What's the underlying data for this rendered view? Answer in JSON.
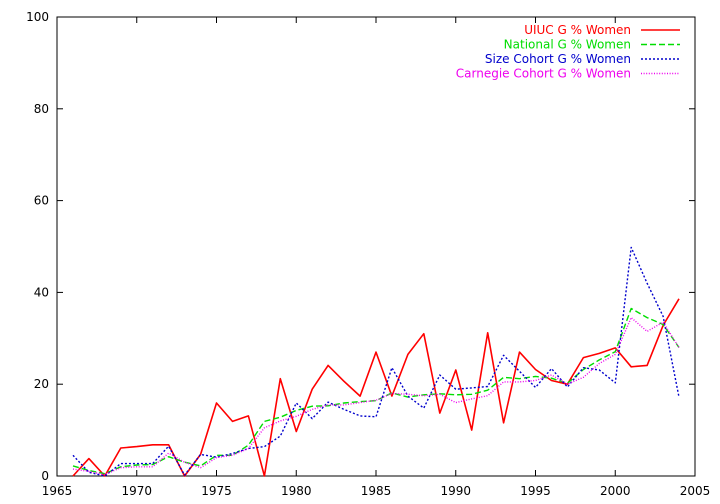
{
  "chart_data": {
    "type": "line",
    "title": "",
    "xlabel": "",
    "ylabel": "",
    "xlim": [
      1965,
      2005
    ],
    "ylim": [
      0,
      100
    ],
    "xticks": [
      1965,
      1970,
      1975,
      1980,
      1985,
      1990,
      1995,
      2000,
      2005
    ],
    "yticks": [
      0,
      20,
      40,
      60,
      80,
      100
    ],
    "grid": false,
    "legend_position": "top-right",
    "series": [
      {
        "name": "UIUC G % Women",
        "color": "#ff0000",
        "dash": "solid",
        "x": [
          1966,
          1967,
          1968,
          1969,
          1970,
          1971,
          1972,
          1973,
          1974,
          1975,
          1976,
          1977,
          1978,
          1979,
          1980,
          1981,
          1982,
          1983,
          1984,
          1985,
          1986,
          1987,
          1988,
          1989,
          1990,
          1991,
          1992,
          1993,
          1994,
          1995,
          1996,
          1997,
          1998,
          1999,
          2000,
          2001,
          2002,
          2003,
          2004
        ],
        "values": [
          0,
          3.8,
          0,
          6.1,
          6.4,
          6.8,
          6.8,
          0,
          4.7,
          15.9,
          11.9,
          13.1,
          0,
          21.2,
          9.7,
          18.9,
          24.1,
          20.6,
          17.4,
          27.0,
          17.4,
          26.5,
          31.0,
          13.7,
          23.1,
          10.0,
          31.2,
          11.6,
          27.0,
          23.2,
          20.8,
          20.0,
          25.8,
          26.7,
          27.9,
          23.8,
          24.1,
          32.8,
          38.6
        ]
      },
      {
        "name": "National G % Women",
        "color": "#00dd00",
        "dash": "dashed",
        "x": [
          1966,
          1967,
          1968,
          1969,
          1970,
          1971,
          1972,
          1973,
          1974,
          1975,
          1976,
          1977,
          1978,
          1979,
          1980,
          1981,
          1982,
          1983,
          1984,
          1985,
          1986,
          1987,
          1988,
          1989,
          1990,
          1991,
          1992,
          1993,
          1994,
          1995,
          1996,
          1997,
          1998,
          1999,
          2000,
          2001,
          2002,
          2003,
          2004
        ],
        "values": [
          2.2,
          1.2,
          0.5,
          2.0,
          2.4,
          2.5,
          4.2,
          3.0,
          2.2,
          4.5,
          4.5,
          6.7,
          11.9,
          12.8,
          14.3,
          15.2,
          15.3,
          15.9,
          16.2,
          16.4,
          18.1,
          17.2,
          17.7,
          17.9,
          17.7,
          17.8,
          18.7,
          21.5,
          21.2,
          21.7,
          21.3,
          20.2,
          23.2,
          25.3,
          27.1,
          36.5,
          34.5,
          33.0,
          28.0
        ]
      },
      {
        "name": "Size Cohort G % Women",
        "color": "#0000cc",
        "dash": "dotted",
        "x": [
          1966,
          1967,
          1968,
          1969,
          1970,
          1971,
          1972,
          1973,
          1974,
          1975,
          1976,
          1977,
          1978,
          1979,
          1980,
          1981,
          1982,
          1983,
          1984,
          1985,
          1986,
          1987,
          1988,
          1989,
          1990,
          1991,
          1992,
          1993,
          1994,
          1995,
          1996,
          1997,
          1998,
          1999,
          2000,
          2001,
          2002,
          2003,
          2004
        ],
        "values": [
          4.5,
          0.8,
          0,
          2.7,
          2.7,
          2.7,
          6.5,
          0.2,
          4.7,
          4.1,
          4.9,
          6.0,
          6.4,
          8.7,
          15.9,
          12.5,
          16.1,
          14.5,
          13.1,
          12.9,
          23.6,
          17.4,
          14.8,
          22.0,
          18.9,
          19.2,
          19.5,
          26.3,
          22.8,
          19.3,
          23.4,
          19.4,
          23.6,
          23.1,
          20.3,
          49.8,
          42.0,
          34.8,
          17.2
        ]
      },
      {
        "name": "Carnegie Cohort G % Women",
        "color": "#ee00ee",
        "dash": "dotted-fine",
        "x": [
          1966,
          1967,
          1968,
          1969,
          1970,
          1971,
          1972,
          1973,
          1974,
          1975,
          1976,
          1977,
          1978,
          1979,
          1980,
          1981,
          1982,
          1983,
          1984,
          1985,
          1986,
          1987,
          1988,
          1989,
          1990,
          1991,
          1992,
          1993,
          1994,
          1995,
          1996,
          1997,
          1998,
          1999,
          2000,
          2001,
          2002,
          2003,
          2004
        ],
        "values": [
          1.5,
          1.0,
          0.3,
          1.8,
          2.0,
          2.0,
          5.0,
          3.0,
          1.8,
          4.0,
          4.5,
          6.0,
          10.5,
          12.0,
          13.0,
          14.5,
          15.5,
          15.5,
          16.0,
          16.5,
          18.0,
          17.8,
          17.5,
          17.8,
          16.0,
          16.8,
          17.5,
          20.5,
          20.5,
          20.8,
          22.0,
          20.0,
          21.5,
          24.5,
          26.5,
          34.5,
          31.5,
          33.5,
          28.0
        ]
      }
    ]
  }
}
